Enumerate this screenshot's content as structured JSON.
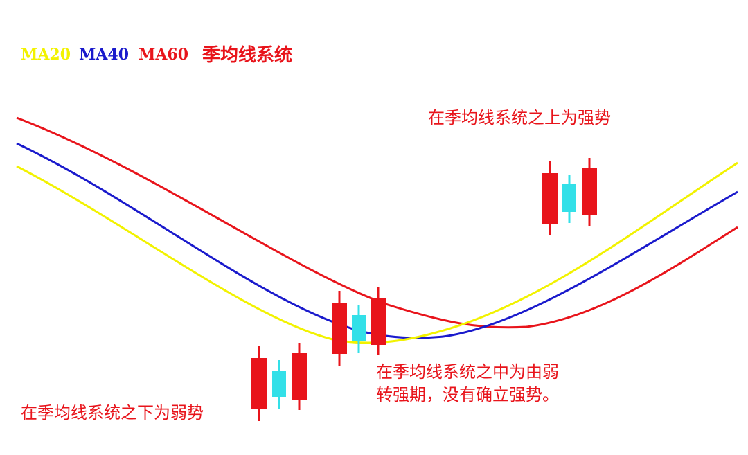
{
  "chart_data": {
    "type": "line",
    "title": "季均线系统",
    "legend": {
      "placement": "top-left",
      "entries": [
        {
          "name": "MA20",
          "color": "#f2f200"
        },
        {
          "name": "MA40",
          "color": "#1a1acc"
        },
        {
          "name": "MA60",
          "color": "#e8141b"
        }
      ]
    },
    "axes_shown": false,
    "grid": false,
    "annotations": [
      {
        "id": "above",
        "lines": [
          "在季均线系统之上为强势"
        ],
        "color": "#e8141b"
      },
      {
        "id": "middle",
        "lines": [
          "在季均线系统之中为由弱",
          "转强期，没有确立强势。"
        ],
        "color": "#e8141b"
      },
      {
        "id": "below",
        "lines": [
          "在季均线系统之下为弱势"
        ],
        "color": "#e8141b"
      }
    ],
    "candle_colors": {
      "up": "#e8141b",
      "down": "#33e0e8"
    }
  }
}
